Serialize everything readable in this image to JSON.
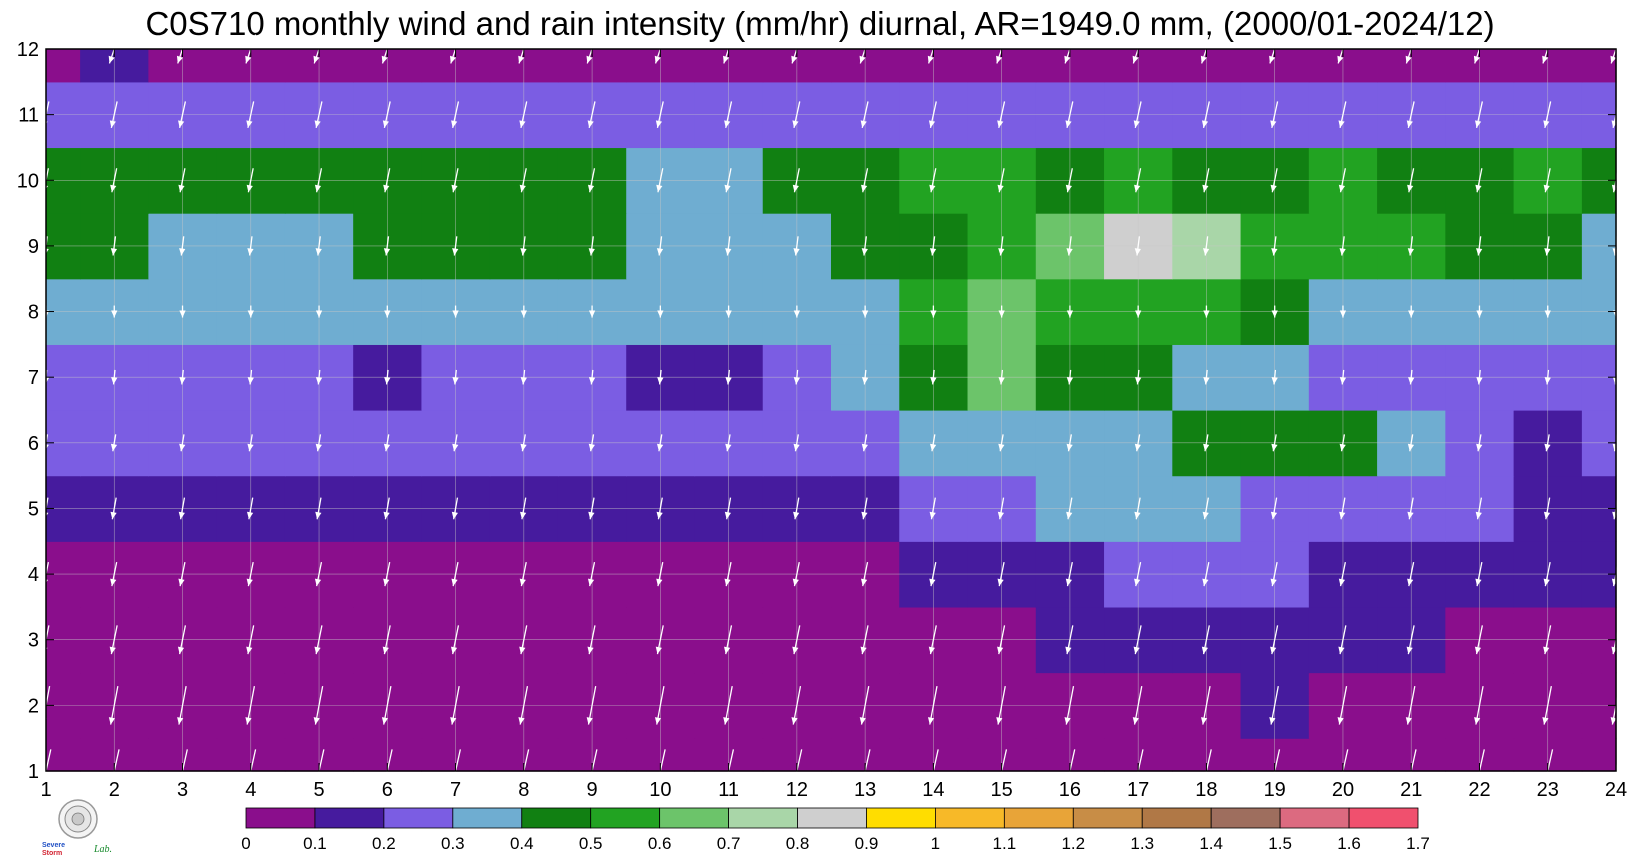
{
  "chart_data": {
    "type": "heatmap",
    "title": "C0S710 monthly wind and rain intensity (mm/hr) diurnal, AR=1949.0 mm, (2000/01-2024/12)",
    "xlabel": "",
    "ylabel": "",
    "x": [
      1,
      2,
      3,
      4,
      5,
      6,
      7,
      8,
      9,
      10,
      11,
      12,
      13,
      14,
      15,
      16,
      17,
      18,
      19,
      20,
      21,
      22,
      23,
      24
    ],
    "y": [
      1,
      2,
      3,
      4,
      5,
      6,
      7,
      8,
      9,
      10,
      11,
      12
    ],
    "xlim": [
      1,
      24
    ],
    "ylim": [
      1,
      12
    ],
    "x_ticks": [
      "1",
      "2",
      "3",
      "4",
      "5",
      "6",
      "7",
      "8",
      "9",
      "10",
      "11",
      "12",
      "13",
      "14",
      "15",
      "16",
      "17",
      "18",
      "19",
      "20",
      "21",
      "22",
      "23",
      "24"
    ],
    "y_ticks": [
      "1",
      "2",
      "3",
      "4",
      "5",
      "6",
      "7",
      "8",
      "9",
      "10",
      "11",
      "12"
    ],
    "grid": true,
    "colorbar": {
      "placement": "bottom",
      "levels": [
        "0",
        "0.1",
        "0.2",
        "0.3",
        "0.4",
        "0.5",
        "0.6",
        "0.7",
        "0.8",
        "0.9",
        "1",
        "1.1",
        "1.2",
        "1.3",
        "1.4",
        "1.5",
        "1.6",
        "1.7"
      ],
      "colors": [
        "#8a0e8c",
        "#461b9e",
        "#7b5de3",
        "#6fadd1",
        "#118012",
        "#22a322",
        "#6cc46a",
        "#a9d6a8",
        "#cfcfcf",
        "#ffdd00",
        "#f7b928",
        "#e8a438",
        "#c88d46",
        "#b07846",
        "#9e6e5e",
        "#dc6a80",
        "#f0506e",
        "#d42a46"
      ]
    },
    "contour_color": "#f2b233",
    "rain_rate": [
      [
        0.05,
        0.05,
        0.05,
        0.05,
        0.05,
        0.05,
        0.05,
        0.05,
        0.05,
        0.05,
        0.05,
        0.05,
        0.05,
        0.05,
        0.05,
        0.05,
        0.05,
        0.05,
        0.05,
        0.05,
        0.05,
        0.05,
        0.05,
        0.05
      ],
      [
        0.05,
        0.05,
        0.05,
        0.05,
        0.05,
        0.05,
        0.05,
        0.05,
        0.05,
        0.05,
        0.05,
        0.05,
        0.05,
        0.05,
        0.05,
        0.05,
        0.05,
        0.05,
        0.13,
        0.08,
        0.05,
        0.05,
        0.05,
        0.05
      ],
      [
        0.05,
        0.05,
        0.05,
        0.05,
        0.05,
        0.05,
        0.05,
        0.05,
        0.05,
        0.05,
        0.05,
        0.05,
        0.05,
        0.05,
        0.07,
        0.12,
        0.15,
        0.15,
        0.17,
        0.15,
        0.13,
        0.05,
        0.05,
        0.05
      ],
      [
        0.07,
        0.05,
        0.07,
        0.06,
        0.06,
        0.09,
        0.07,
        0.06,
        0.07,
        0.07,
        0.07,
        0.05,
        0.08,
        0.12,
        0.15,
        0.17,
        0.2,
        0.2,
        0.2,
        0.18,
        0.15,
        0.16,
        0.15,
        0.15
      ],
      [
        0.18,
        0.18,
        0.17,
        0.19,
        0.15,
        0.16,
        0.16,
        0.15,
        0.17,
        0.16,
        0.16,
        0.16,
        0.16,
        0.2,
        0.28,
        0.31,
        0.31,
        0.3,
        0.28,
        0.25,
        0.26,
        0.2,
        0.12,
        0.1
      ],
      [
        0.26,
        0.23,
        0.25,
        0.23,
        0.28,
        0.25,
        0.25,
        0.26,
        0.25,
        0.25,
        0.25,
        0.21,
        0.26,
        0.3,
        0.36,
        0.38,
        0.37,
        0.45,
        0.44,
        0.48,
        0.34,
        0.27,
        0.17,
        0.27
      ],
      [
        0.28,
        0.24,
        0.27,
        0.27,
        0.24,
        0.15,
        0.22,
        0.25,
        0.24,
        0.17,
        0.15,
        0.24,
        0.3,
        0.42,
        0.61,
        0.47,
        0.4,
        0.37,
        0.3,
        0.27,
        0.2,
        0.22,
        0.2,
        0.24
      ],
      [
        0.36,
        0.36,
        0.38,
        0.38,
        0.36,
        0.33,
        0.37,
        0.33,
        0.34,
        0.36,
        0.35,
        0.37,
        0.36,
        0.5,
        0.6,
        0.56,
        0.58,
        0.55,
        0.45,
        0.35,
        0.36,
        0.33,
        0.34,
        0.33
      ],
      [
        0.43,
        0.41,
        0.37,
        0.37,
        0.38,
        0.44,
        0.44,
        0.43,
        0.42,
        0.38,
        0.36,
        0.38,
        0.45,
        0.48,
        0.58,
        0.68,
        0.83,
        0.74,
        0.55,
        0.55,
        0.5,
        0.45,
        0.42,
        0.37
      ],
      [
        0.42,
        0.44,
        0.44,
        0.44,
        0.43,
        0.43,
        0.43,
        0.42,
        0.42,
        0.38,
        0.38,
        0.41,
        0.45,
        0.5,
        0.55,
        0.48,
        0.5,
        0.48,
        0.48,
        0.5,
        0.46,
        0.48,
        0.5,
        0.45
      ],
      [
        0.24,
        0.22,
        0.21,
        0.22,
        0.21,
        0.22,
        0.22,
        0.22,
        0.22,
        0.22,
        0.22,
        0.22,
        0.22,
        0.22,
        0.22,
        0.22,
        0.22,
        0.22,
        0.22,
        0.22,
        0.22,
        0.22,
        0.22,
        0.22
      ],
      [
        0.05,
        0.13,
        0.05,
        0.05,
        0.05,
        0.05,
        0.05,
        0.05,
        0.05,
        0.05,
        0.05,
        0.05,
        0.05,
        0.05,
        0.05,
        0.05,
        0.05,
        0.05,
        0.05,
        0.05,
        0.05,
        0.05,
        0.05,
        0.05
      ]
    ],
    "wind_u": [
      [
        -0.2,
        -0.2,
        -0.2,
        -0.2,
        -0.2,
        -0.2,
        -0.2,
        -0.2,
        -0.2,
        -0.2,
        -0.2,
        -0.2,
        -0.2,
        -0.2,
        -0.2,
        -0.2,
        -0.2,
        -0.2,
        -0.2,
        -0.2,
        -0.2,
        -0.2,
        -0.2,
        -0.2
      ],
      [
        -0.15,
        -0.15,
        -0.15,
        -0.15,
        -0.15,
        -0.15,
        -0.15,
        -0.15,
        -0.15,
        -0.15,
        -0.15,
        -0.15,
        -0.15,
        -0.15,
        -0.15,
        -0.15,
        -0.15,
        -0.15,
        -0.15,
        -0.15,
        -0.15,
        -0.15,
        -0.15,
        -0.15
      ],
      [
        -0.12,
        -0.12,
        -0.12,
        -0.12,
        -0.12,
        -0.12,
        -0.12,
        -0.12,
        -0.12,
        -0.12,
        -0.12,
        -0.12,
        -0.12,
        -0.12,
        -0.12,
        -0.12,
        -0.12,
        -0.12,
        -0.12,
        -0.12,
        -0.12,
        -0.12,
        -0.12,
        -0.12
      ],
      [
        -0.1,
        -0.1,
        -0.1,
        -0.1,
        -0.1,
        -0.1,
        -0.1,
        -0.1,
        -0.1,
        -0.1,
        -0.1,
        -0.1,
        -0.1,
        -0.1,
        -0.1,
        -0.1,
        -0.1,
        -0.1,
        -0.1,
        -0.1,
        -0.1,
        -0.1,
        -0.1,
        -0.1
      ],
      [
        -0.08,
        -0.08,
        -0.08,
        -0.08,
        -0.08,
        -0.08,
        -0.08,
        -0.08,
        -0.08,
        -0.08,
        -0.08,
        -0.08,
        -0.08,
        -0.08,
        -0.08,
        -0.08,
        -0.08,
        -0.08,
        -0.08,
        -0.08,
        -0.08,
        -0.08,
        -0.08,
        -0.08
      ],
      [
        -0.06,
        -0.06,
        -0.06,
        -0.06,
        -0.06,
        -0.06,
        -0.06,
        -0.06,
        -0.06,
        -0.06,
        -0.06,
        -0.06,
        -0.06,
        -0.06,
        -0.06,
        -0.06,
        -0.06,
        -0.06,
        -0.06,
        -0.06,
        -0.06,
        -0.06,
        -0.06,
        -0.06
      ],
      [
        -0.03,
        -0.03,
        -0.03,
        -0.03,
        -0.03,
        -0.03,
        -0.03,
        -0.03,
        -0.03,
        -0.03,
        -0.03,
        -0.03,
        -0.03,
        -0.03,
        -0.03,
        -0.03,
        -0.03,
        -0.03,
        -0.03,
        -0.03,
        -0.03,
        -0.03,
        -0.03,
        -0.03
      ],
      [
        0.0,
        0.0,
        0.0,
        0.0,
        0.0,
        0.0,
        0.0,
        0.0,
        0.0,
        0.0,
        0.0,
        0.0,
        0.0,
        0.0,
        0.0,
        0.0,
        0.0,
        0.0,
        0.0,
        0.0,
        0.0,
        0.0,
        0.0,
        0.0
      ],
      [
        -0.05,
        -0.05,
        -0.05,
        -0.05,
        -0.05,
        -0.05,
        -0.05,
        -0.05,
        -0.05,
        -0.05,
        -0.05,
        -0.05,
        -0.05,
        -0.05,
        -0.05,
        -0.05,
        -0.05,
        -0.05,
        -0.05,
        -0.05,
        -0.05,
        -0.05,
        -0.05,
        -0.05
      ],
      [
        -0.1,
        -0.1,
        -0.1,
        -0.1,
        -0.1,
        -0.1,
        -0.1,
        -0.1,
        -0.1,
        -0.1,
        -0.1,
        -0.1,
        -0.1,
        -0.1,
        -0.1,
        -0.1,
        -0.1,
        -0.1,
        -0.1,
        -0.1,
        -0.1,
        -0.1,
        -0.1,
        -0.1
      ],
      [
        -0.12,
        -0.12,
        -0.12,
        -0.12,
        -0.12,
        -0.12,
        -0.12,
        -0.12,
        -0.12,
        -0.12,
        -0.12,
        -0.12,
        -0.12,
        -0.12,
        -0.12,
        -0.12,
        -0.12,
        -0.12,
        -0.12,
        -0.12,
        -0.12,
        -0.12,
        -0.12,
        -0.12
      ],
      [
        -0.2,
        -0.2,
        -0.2,
        -0.2,
        -0.2,
        -0.2,
        -0.2,
        -0.2,
        -0.2,
        -0.2,
        -0.2,
        -0.2,
        -0.2,
        -0.2,
        -0.2,
        -0.2,
        -0.2,
        -0.2,
        -0.2,
        -0.2,
        -0.2,
        -0.2,
        -0.2,
        -0.2
      ]
    ],
    "wind_v": [
      [
        -0.9,
        -0.9,
        -0.9,
        -0.9,
        -0.9,
        -0.9,
        -0.9,
        -0.9,
        -0.9,
        -0.9,
        -0.9,
        -0.9,
        -0.9,
        -0.9,
        -0.9,
        -0.9,
        -0.9,
        -0.9,
        -0.9,
        -0.9,
        -0.9,
        -0.9,
        -0.9,
        -0.9
      ],
      [
        -0.8,
        -0.8,
        -0.8,
        -0.8,
        -0.8,
        -0.8,
        -0.8,
        -0.8,
        -0.8,
        -0.8,
        -0.8,
        -0.8,
        -0.8,
        -0.8,
        -0.8,
        -0.8,
        -0.8,
        -0.8,
        -0.8,
        -0.8,
        -0.8,
        -0.8,
        -0.8,
        -0.8
      ],
      [
        -0.6,
        -0.6,
        -0.6,
        -0.6,
        -0.6,
        -0.6,
        -0.6,
        -0.6,
        -0.6,
        -0.6,
        -0.6,
        -0.6,
        -0.6,
        -0.6,
        -0.6,
        -0.6,
        -0.6,
        -0.6,
        -0.6,
        -0.6,
        -0.6,
        -0.6,
        -0.6,
        -0.6
      ],
      [
        -0.5,
        -0.5,
        -0.5,
        -0.5,
        -0.5,
        -0.5,
        -0.5,
        -0.5,
        -0.5,
        -0.5,
        -0.5,
        -0.5,
        -0.5,
        -0.5,
        -0.5,
        -0.5,
        -0.5,
        -0.5,
        -0.5,
        -0.5,
        -0.5,
        -0.5,
        -0.5,
        -0.5
      ],
      [
        -0.45,
        -0.45,
        -0.45,
        -0.45,
        -0.45,
        -0.45,
        -0.45,
        -0.45,
        -0.45,
        -0.45,
        -0.45,
        -0.45,
        -0.45,
        -0.45,
        -0.45,
        -0.45,
        -0.45,
        -0.45,
        -0.45,
        -0.45,
        -0.45,
        -0.45,
        -0.45,
        -0.45
      ],
      [
        -0.35,
        -0.35,
        -0.35,
        -0.35,
        -0.35,
        -0.35,
        -0.35,
        -0.35,
        -0.35,
        -0.35,
        -0.35,
        -0.35,
        -0.35,
        -0.35,
        -0.35,
        -0.35,
        -0.35,
        -0.35,
        -0.35,
        -0.35,
        -0.35,
        -0.35,
        -0.35,
        -0.35
      ],
      [
        -0.3,
        -0.3,
        -0.3,
        -0.3,
        -0.3,
        -0.3,
        -0.3,
        -0.3,
        -0.3,
        -0.3,
        -0.3,
        -0.3,
        -0.3,
        -0.3,
        -0.3,
        -0.3,
        -0.3,
        -0.3,
        -0.3,
        -0.3,
        -0.3,
        -0.3,
        -0.3,
        -0.3
      ],
      [
        -0.25,
        -0.25,
        -0.25,
        -0.25,
        -0.25,
        -0.25,
        -0.25,
        -0.25,
        -0.25,
        -0.25,
        -0.25,
        -0.25,
        -0.25,
        -0.25,
        -0.25,
        -0.25,
        -0.25,
        -0.25,
        -0.25,
        -0.25,
        -0.25,
        -0.25,
        -0.25,
        -0.25
      ],
      [
        -0.4,
        -0.4,
        -0.4,
        -0.4,
        -0.4,
        -0.4,
        -0.4,
        -0.4,
        -0.4,
        -0.4,
        -0.4,
        -0.4,
        -0.4,
        -0.4,
        -0.4,
        -0.4,
        -0.4,
        -0.4,
        -0.4,
        -0.4,
        -0.4,
        -0.4,
        -0.4,
        -0.4
      ],
      [
        -0.5,
        -0.5,
        -0.5,
        -0.5,
        -0.5,
        -0.5,
        -0.5,
        -0.5,
        -0.5,
        -0.5,
        -0.5,
        -0.5,
        -0.5,
        -0.5,
        -0.5,
        -0.5,
        -0.5,
        -0.5,
        -0.5,
        -0.5,
        -0.5,
        -0.5,
        -0.5,
        -0.5
      ],
      [
        -0.55,
        -0.55,
        -0.55,
        -0.55,
        -0.55,
        -0.55,
        -0.55,
        -0.55,
        -0.55,
        -0.55,
        -0.55,
        -0.55,
        -0.55,
        -0.55,
        -0.55,
        -0.55,
        -0.55,
        -0.55,
        -0.55,
        -0.55,
        -0.55,
        -0.55,
        -0.55,
        -0.55
      ],
      [
        -0.6,
        -0.6,
        -0.6,
        -0.6,
        -0.6,
        -0.6,
        -0.6,
        -0.6,
        -0.6,
        -0.6,
        -0.6,
        -0.6,
        -0.6,
        -0.6,
        -0.6,
        -0.6,
        -0.6,
        -0.6,
        -0.6,
        -0.6,
        -0.6,
        -0.6,
        -0.6,
        -0.6
      ]
    ]
  },
  "logo": {
    "text_1": "Severe",
    "text_2": "Storm",
    "text_3": "Lab."
  }
}
